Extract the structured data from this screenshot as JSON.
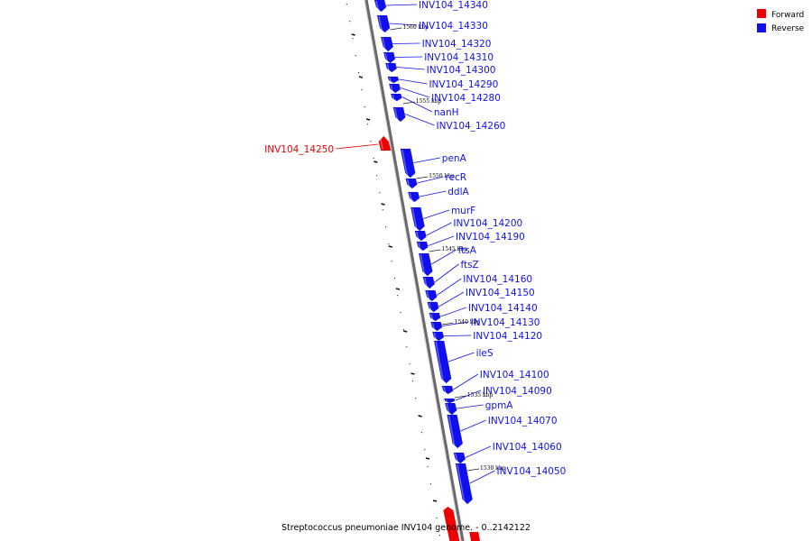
{
  "colors": {
    "forward": "#ee0000",
    "reverse": "#1010ee",
    "axis": "#777777"
  },
  "legend": [
    {
      "label": "Forward",
      "color": "#ee0000"
    },
    {
      "label": "Reverse",
      "color": "#1010ee"
    }
  ],
  "caption": "Streptococcus pneumoniae INV104 genome. - 0..2142122",
  "ticks": [
    "1560 kbp",
    "1555 kbp",
    "1550 kbp",
    "1545 kbp",
    "1540 kbp",
    "1535 kbp",
    "1530 kbp"
  ],
  "genes": [
    {
      "label": "INV104_14340",
      "strand": "reverse"
    },
    {
      "label": "INV104_14330",
      "strand": "reverse"
    },
    {
      "label": "INV104_14320",
      "strand": "reverse"
    },
    {
      "label": "INV104_14310",
      "strand": "reverse"
    },
    {
      "label": "INV104_14300",
      "strand": "reverse"
    },
    {
      "label": "INV104_14290",
      "strand": "reverse"
    },
    {
      "label": "INV104_14280",
      "strand": "reverse"
    },
    {
      "label": "nanH",
      "strand": "reverse"
    },
    {
      "label": "INV104_14260",
      "strand": "reverse"
    },
    {
      "label": "INV104_14250",
      "strand": "forward"
    },
    {
      "label": "penA",
      "strand": "reverse"
    },
    {
      "label": "recR",
      "strand": "reverse"
    },
    {
      "label": "ddlA",
      "strand": "reverse"
    },
    {
      "label": "murF",
      "strand": "reverse"
    },
    {
      "label": "INV104_14200",
      "strand": "reverse"
    },
    {
      "label": "INV104_14190",
      "strand": "reverse"
    },
    {
      "label": "ftsA",
      "strand": "reverse"
    },
    {
      "label": "ftsZ",
      "strand": "reverse"
    },
    {
      "label": "INV104_14160",
      "strand": "reverse"
    },
    {
      "label": "INV104_14150",
      "strand": "reverse"
    },
    {
      "label": "INV104_14140",
      "strand": "reverse"
    },
    {
      "label": "INV104_14130",
      "strand": "reverse"
    },
    {
      "label": "INV104_14120",
      "strand": "reverse"
    },
    {
      "label": "ileS",
      "strand": "reverse"
    },
    {
      "label": "INV104_14100",
      "strand": "reverse"
    },
    {
      "label": "INV104_14090",
      "strand": "reverse"
    },
    {
      "label": "gpmA",
      "strand": "reverse"
    },
    {
      "label": "INV104_14070",
      "strand": "reverse"
    },
    {
      "label": "INV104_14060",
      "strand": "reverse"
    },
    {
      "label": "INV104_14050",
      "strand": "reverse"
    }
  ]
}
